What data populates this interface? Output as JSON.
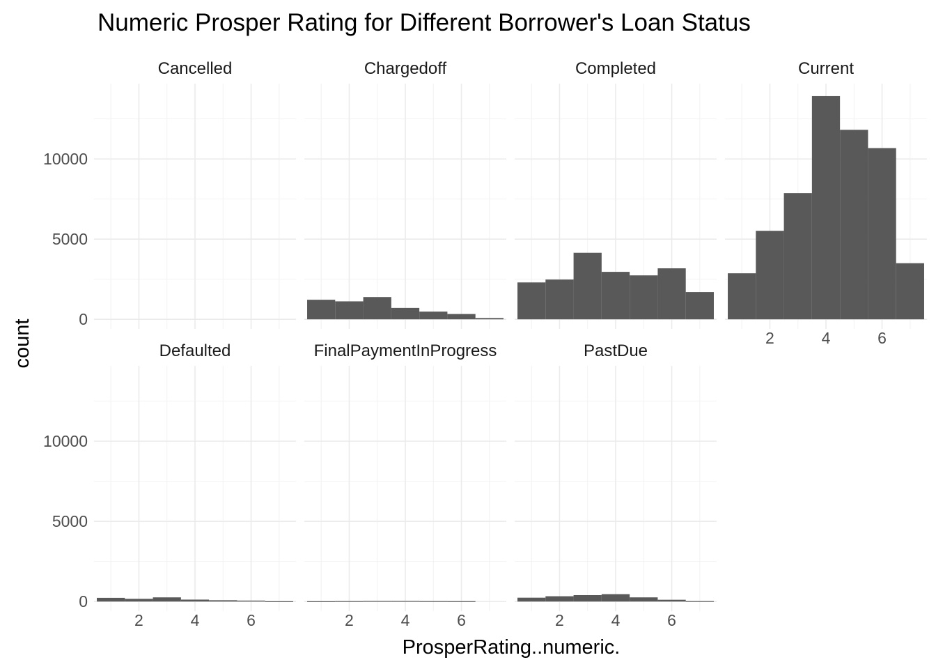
{
  "chart_data": {
    "type": "bar",
    "title": "Numeric Prosper Rating for Different Borrower's Loan Status",
    "xlabel": "ProsperRating..numeric.",
    "ylabel": "count",
    "xlim": [
      0.4,
      7.6
    ],
    "ylim": [
      -600,
      14700
    ],
    "x_ticks": [
      2,
      4,
      6
    ],
    "y_ticks": [
      0,
      5000,
      10000
    ],
    "grid": true,
    "facets": [
      {
        "name": "Cancelled",
        "bins": [
          {
            "x0": 0.5,
            "x1": 1.5,
            "count": 0
          },
          {
            "x0": 1.5,
            "x1": 2.5,
            "count": 0
          },
          {
            "x0": 2.5,
            "x1": 3.5,
            "count": 0
          },
          {
            "x0": 3.5,
            "x1": 4.5,
            "count": 0
          },
          {
            "x0": 4.5,
            "x1": 5.5,
            "count": 0
          },
          {
            "x0": 5.5,
            "x1": 6.5,
            "count": 0
          },
          {
            "x0": 6.5,
            "x1": 7.5,
            "count": 0
          }
        ]
      },
      {
        "name": "Chargedoff",
        "bins": [
          {
            "x0": 0.5,
            "x1": 1.5,
            "count": 1220
          },
          {
            "x0": 1.5,
            "x1": 2.5,
            "count": 1120
          },
          {
            "x0": 2.5,
            "x1": 3.5,
            "count": 1390
          },
          {
            "x0": 3.5,
            "x1": 4.5,
            "count": 710
          },
          {
            "x0": 4.5,
            "x1": 5.5,
            "count": 480
          },
          {
            "x0": 5.5,
            "x1": 6.5,
            "count": 330
          },
          {
            "x0": 6.5,
            "x1": 7.5,
            "count": 80
          }
        ]
      },
      {
        "name": "Completed",
        "bins": [
          {
            "x0": 0.5,
            "x1": 1.5,
            "count": 2300
          },
          {
            "x0": 1.5,
            "x1": 2.5,
            "count": 2480
          },
          {
            "x0": 2.5,
            "x1": 3.5,
            "count": 4150
          },
          {
            "x0": 3.5,
            "x1": 4.5,
            "count": 2960
          },
          {
            "x0": 4.5,
            "x1": 5.5,
            "count": 2740
          },
          {
            "x0": 5.5,
            "x1": 6.5,
            "count": 3180
          },
          {
            "x0": 6.5,
            "x1": 7.5,
            "count": 1700
          }
        ]
      },
      {
        "name": "Current",
        "bins": [
          {
            "x0": 0.5,
            "x1": 1.5,
            "count": 2870
          },
          {
            "x0": 1.5,
            "x1": 2.5,
            "count": 5520
          },
          {
            "x0": 2.5,
            "x1": 3.5,
            "count": 7870
          },
          {
            "x0": 3.5,
            "x1": 4.5,
            "count": 13920
          },
          {
            "x0": 4.5,
            "x1": 5.5,
            "count": 11820
          },
          {
            "x0": 5.5,
            "x1": 6.5,
            "count": 10680
          },
          {
            "x0": 6.5,
            "x1": 7.5,
            "count": 3500
          }
        ]
      },
      {
        "name": "Defaulted",
        "bins": [
          {
            "x0": 0.5,
            "x1": 1.5,
            "count": 230
          },
          {
            "x0": 1.5,
            "x1": 2.5,
            "count": 170
          },
          {
            "x0": 2.5,
            "x1": 3.5,
            "count": 260
          },
          {
            "x0": 3.5,
            "x1": 4.5,
            "count": 120
          },
          {
            "x0": 4.5,
            "x1": 5.5,
            "count": 80
          },
          {
            "x0": 5.5,
            "x1": 6.5,
            "count": 60
          },
          {
            "x0": 6.5,
            "x1": 7.5,
            "count": 20
          }
        ]
      },
      {
        "name": "FinalPaymentInProgress",
        "bins": [
          {
            "x0": 0.5,
            "x1": 1.5,
            "count": 20
          },
          {
            "x0": 1.5,
            "x1": 2.5,
            "count": 30
          },
          {
            "x0": 2.5,
            "x1": 3.5,
            "count": 40
          },
          {
            "x0": 3.5,
            "x1": 4.5,
            "count": 40
          },
          {
            "x0": 4.5,
            "x1": 5.5,
            "count": 30
          },
          {
            "x0": 5.5,
            "x1": 6.5,
            "count": 25
          },
          {
            "x0": 6.5,
            "x1": 7.5,
            "count": 0
          }
        ]
      },
      {
        "name": "PastDue",
        "bins": [
          {
            "x0": 0.5,
            "x1": 1.5,
            "count": 240
          },
          {
            "x0": 1.5,
            "x1": 2.5,
            "count": 330
          },
          {
            "x0": 2.5,
            "x1": 3.5,
            "count": 400
          },
          {
            "x0": 3.5,
            "x1": 4.5,
            "count": 460
          },
          {
            "x0": 4.5,
            "x1": 5.5,
            "count": 260
          },
          {
            "x0": 5.5,
            "x1": 6.5,
            "count": 110
          },
          {
            "x0": 6.5,
            "x1": 7.5,
            "count": 30
          }
        ]
      }
    ]
  }
}
